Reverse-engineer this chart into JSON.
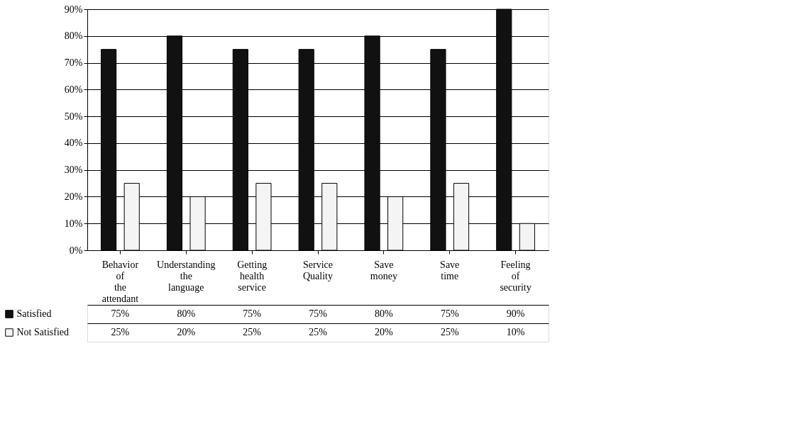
{
  "chart_data": {
    "type": "bar",
    "categories": [
      "Behavior of the attendant",
      "Understanding the language",
      "Getting health service",
      "Service Quality",
      "Save money",
      "Save time",
      "Feeling of security"
    ],
    "series": [
      {
        "name": "Satisfied",
        "color": "#111111",
        "values": [
          75,
          80,
          75,
          75,
          80,
          75,
          90
        ],
        "value_labels": [
          "75%",
          "80%",
          "75%",
          "75%",
          "80%",
          "75%",
          "90%"
        ]
      },
      {
        "name": "Not Satisfied",
        "color": "#f4f4f4",
        "values": [
          25,
          20,
          25,
          25,
          20,
          25,
          10
        ],
        "value_labels": [
          "25%",
          "20%",
          "25%",
          "25%",
          "20%",
          "25%",
          "10%"
        ]
      }
    ],
    "ylim": [
      0,
      90
    ],
    "yticks": [
      {
        "value": 0,
        "label": "0%"
      },
      {
        "value": 10,
        "label": "10%"
      },
      {
        "value": 20,
        "label": "20%"
      },
      {
        "value": 30,
        "label": "30%"
      },
      {
        "value": 40,
        "label": "40%"
      },
      {
        "value": 50,
        "label": "50%"
      },
      {
        "value": 60,
        "label": "60%"
      },
      {
        "value": 70,
        "label": "70%"
      },
      {
        "value": 80,
        "label": "80%"
      },
      {
        "value": 90,
        "label": "90%"
      }
    ],
    "grid": "y",
    "legend": "bottom left"
  }
}
